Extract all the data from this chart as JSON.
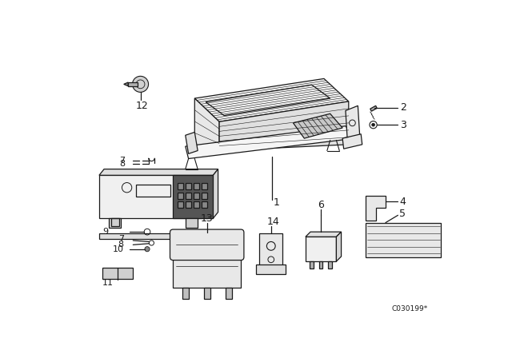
{
  "watermark": "C030199*",
  "bg": "#ffffff",
  "lc": "#1a1a1a",
  "lw": 0.9,
  "fig_w": 6.4,
  "fig_h": 4.48,
  "dpi": 100
}
